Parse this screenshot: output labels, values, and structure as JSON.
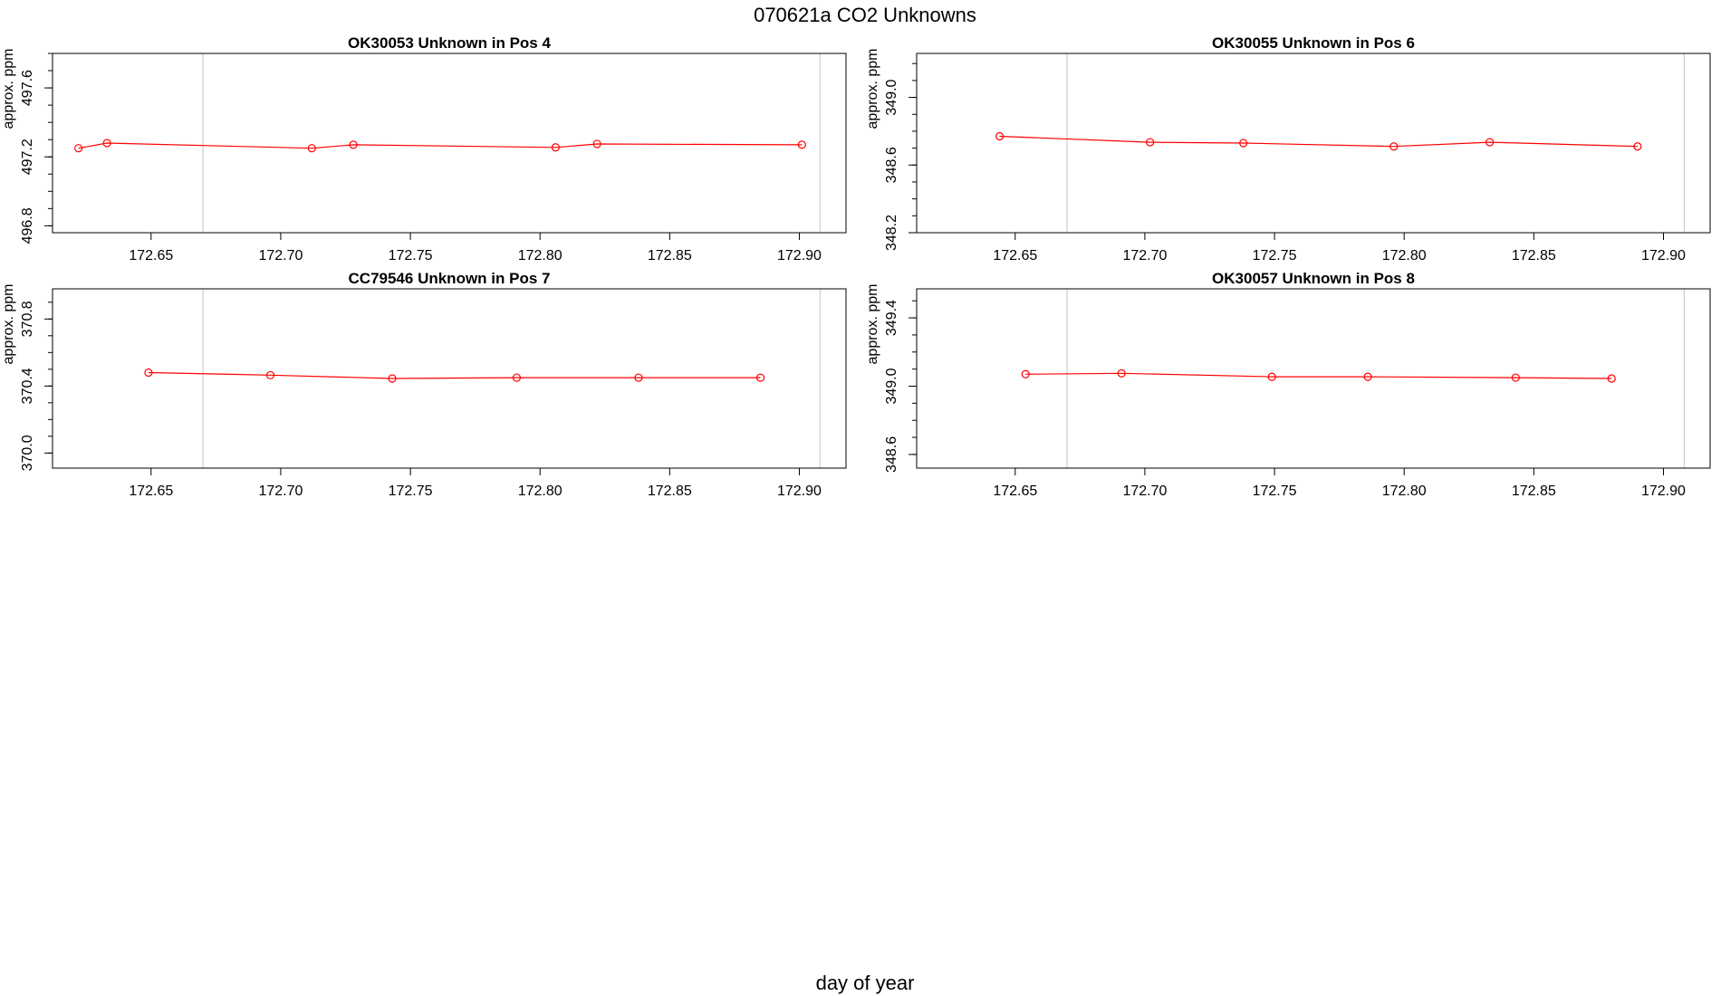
{
  "figure": {
    "title": "070621a  CO2 Unknowns",
    "xlabel": "day of year"
  },
  "colors": {
    "series": "#ff0000",
    "frame": "#000000",
    "marker_line": "#cccccc"
  },
  "chart_data": [
    {
      "type": "line",
      "title": "OK30053    Unknown in Pos 4",
      "ylabel": "approx. ppm",
      "xlim": [
        172.612,
        172.918
      ],
      "ylim": [
        496.76,
        497.8
      ],
      "xticks": [
        172.65,
        172.7,
        172.75,
        172.8,
        172.85,
        172.9
      ],
      "xtick_labels": [
        "172.65",
        "172.70",
        "172.75",
        "172.80",
        "172.85",
        "172.90"
      ],
      "yticks": [
        496.8,
        497.2,
        497.6
      ],
      "ytick_labels": [
        "496.8",
        "497.2",
        "497.6"
      ],
      "vlines": [
        172.67,
        172.908
      ],
      "series": [
        {
          "x": [
            172.622,
            172.633,
            172.712,
            172.728,
            172.806,
            172.822,
            172.901
          ],
          "y": [
            497.25,
            497.28,
            497.25,
            497.27,
            497.255,
            497.275,
            497.27
          ]
        }
      ]
    },
    {
      "type": "line",
      "title": "OK30055    Unknown in Pos 6",
      "ylabel": "approx. ppm",
      "xlim": [
        172.612,
        172.918
      ],
      "ylim": [
        348.2,
        349.26
      ],
      "xticks": [
        172.65,
        172.7,
        172.75,
        172.8,
        172.85,
        172.9
      ],
      "xtick_labels": [
        "172.65",
        "172.70",
        "172.75",
        "172.80",
        "172.85",
        "172.90"
      ],
      "yticks": [
        348.2,
        348.6,
        349.0
      ],
      "ytick_labels": [
        "348.2",
        "348.6",
        "349.0"
      ],
      "vlines": [
        172.67,
        172.908
      ],
      "series": [
        {
          "x": [
            172.644,
            172.702,
            172.738,
            172.796,
            172.833,
            172.89
          ],
          "y": [
            348.77,
            348.735,
            348.73,
            348.71,
            348.735,
            348.71
          ]
        }
      ]
    },
    {
      "type": "line",
      "title": "CC79546    Unknown in Pos 7",
      "ylabel": "approx. ppm",
      "xlim": [
        172.612,
        172.918
      ],
      "ylim": [
        369.91,
        370.98
      ],
      "xticks": [
        172.65,
        172.7,
        172.75,
        172.8,
        172.85,
        172.9
      ],
      "xtick_labels": [
        "172.65",
        "172.70",
        "172.75",
        "172.80",
        "172.85",
        "172.90"
      ],
      "yticks": [
        370.0,
        370.4,
        370.8
      ],
      "ytick_labels": [
        "370.0",
        "370.4",
        "370.8"
      ],
      "vlines": [
        172.67,
        172.908
      ],
      "series": [
        {
          "x": [
            172.649,
            172.696,
            172.743,
            172.791,
            172.838,
            172.885
          ],
          "y": [
            370.48,
            370.465,
            370.445,
            370.45,
            370.45,
            370.45
          ]
        }
      ]
    },
    {
      "type": "line",
      "title": "OK30057    Unknown in Pos 8",
      "ylabel": "approx. ppm",
      "xlim": [
        172.612,
        172.918
      ],
      "ylim": [
        348.52,
        349.57
      ],
      "xticks": [
        172.65,
        172.7,
        172.75,
        172.8,
        172.85,
        172.9
      ],
      "xtick_labels": [
        "172.65",
        "172.70",
        "172.75",
        "172.80",
        "172.85",
        "172.90"
      ],
      "yticks": [
        348.6,
        349.0,
        349.4
      ],
      "ytick_labels": [
        "348.6",
        "349.0",
        "349.4"
      ],
      "vlines": [
        172.67,
        172.908
      ],
      "series": [
        {
          "x": [
            172.654,
            172.691,
            172.749,
            172.786,
            172.843,
            172.88
          ],
          "y": [
            349.07,
            349.075,
            349.055,
            349.055,
            349.05,
            349.045
          ]
        }
      ]
    }
  ]
}
